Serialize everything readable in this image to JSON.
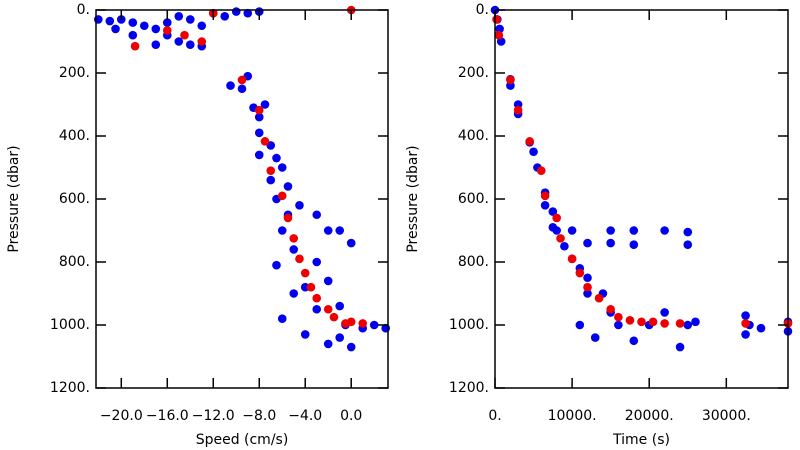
{
  "chart_data": [
    {
      "type": "scatter",
      "xlabel": "Speed (cm/s)",
      "ylabel": "Pressure (dbar)",
      "xlim": [
        -22.2,
        3.2
      ],
      "ylim": [
        1200,
        0
      ],
      "xticks": [
        {
          "value": -20,
          "label": "−20.0"
        },
        {
          "value": -16,
          "label": "−16.0"
        },
        {
          "value": -12,
          "label": "−12.0"
        },
        {
          "value": -8,
          "label": "−8.0"
        },
        {
          "value": -4,
          "label": "−4.0"
        },
        {
          "value": 0,
          "label": "0.0"
        }
      ],
      "yticks": [
        {
          "value": 0,
          "label": "0."
        },
        {
          "value": 200,
          "label": "200."
        },
        {
          "value": 400,
          "label": "400."
        },
        {
          "value": 600,
          "label": "600."
        },
        {
          "value": 800,
          "label": "800."
        },
        {
          "value": 1000,
          "label": "1000."
        },
        {
          "value": 1200,
          "label": "1200."
        }
      ],
      "series": [
        {
          "color": "#0000ee",
          "x": [
            -22,
            -21,
            -20,
            -19,
            -18,
            -17,
            -16,
            -15,
            -14,
            -13,
            -17,
            -19,
            -20.5,
            -16,
            -14,
            -12,
            -10,
            -11,
            -13,
            -15,
            -9,
            -8,
            -10.5,
            -9,
            -9.5,
            -8.5,
            -7.5,
            -8,
            -8,
            -7,
            -6.5,
            -8,
            -7,
            -6,
            -6.5,
            -5.5,
            -5.5,
            -6,
            -4.5,
            -3,
            -2,
            -1,
            0,
            -5,
            -3,
            -6.5,
            -4,
            -2,
            -5,
            -3,
            -1,
            -4,
            -2,
            0,
            1,
            2,
            3,
            -6,
            -1,
            -0.5
          ],
          "values": [
            30,
            35,
            30,
            40,
            50,
            60,
            80,
            100,
            110,
            115,
            110,
            80,
            60,
            40,
            30,
            10,
            5,
            20,
            50,
            20,
            10,
            5,
            240,
            210,
            250,
            310,
            300,
            340,
            390,
            430,
            470,
            460,
            540,
            500,
            600,
            560,
            650,
            700,
            620,
            650,
            700,
            700,
            740,
            760,
            800,
            810,
            880,
            860,
            900,
            950,
            940,
            1030,
            1060,
            1070,
            1010,
            1000,
            1010,
            980,
            1040,
            1000
          ]
        },
        {
          "color": "#ee0000",
          "x": [
            -18.8,
            -16,
            -14.5,
            -13,
            -12,
            0,
            -9.5,
            -8,
            -7.5,
            -7,
            -6,
            -5.5,
            -5,
            -4.5,
            -4,
            -3.5,
            -3,
            -2,
            -1.5,
            -0.5,
            0,
            1
          ],
          "values": [
            115,
            65,
            80,
            100,
            10,
            0,
            222,
            318,
            417,
            510,
            590,
            660,
            725,
            790,
            835,
            880,
            915,
            950,
            975,
            995,
            990,
            995
          ]
        }
      ]
    },
    {
      "type": "scatter",
      "xlabel": "Time (s)",
      "ylabel": "Pressure (dbar)",
      "xlim": [
        0,
        38000
      ],
      "ylim": [
        1200,
        0
      ],
      "xticks": [
        {
          "value": 0,
          "label": "0."
        },
        {
          "value": 10000,
          "label": "10000."
        },
        {
          "value": 20000,
          "label": "20000."
        },
        {
          "value": 30000,
          "label": "30000."
        }
      ],
      "yticks": [
        {
          "value": 0,
          "label": "0."
        },
        {
          "value": 200,
          "label": "200."
        },
        {
          "value": 400,
          "label": "400."
        },
        {
          "value": 600,
          "label": "600."
        },
        {
          "value": 800,
          "label": "800."
        },
        {
          "value": 1000,
          "label": "1000."
        },
        {
          "value": 1200,
          "label": "1200."
        }
      ],
      "series": [
        {
          "color": "#0000ee",
          "x": [
            0,
            300,
            600,
            800,
            2000,
            2000,
            3000,
            3000,
            4500,
            5000,
            5500,
            6500,
            6500,
            7500,
            8000,
            7500,
            9000,
            10000,
            11000,
            12000,
            12000,
            10000,
            12000,
            15000,
            15000,
            18000,
            18000,
            22000,
            25000,
            25000,
            14000,
            15000,
            16000,
            18000,
            20000,
            22000,
            24000,
            25000,
            26000,
            32500,
            32500,
            33000,
            34500,
            38000,
            38000,
            11000,
            13000
          ],
          "values": [
            0,
            30,
            60,
            100,
            220,
            240,
            300,
            330,
            420,
            450,
            500,
            580,
            620,
            640,
            700,
            690,
            750,
            790,
            820,
            850,
            900,
            700,
            740,
            700,
            740,
            700,
            745,
            700,
            705,
            745,
            900,
            960,
            1000,
            1050,
            1000,
            960,
            1070,
            1000,
            990,
            970,
            1030,
            1000,
            1010,
            990,
            1020,
            1000,
            1040
          ]
        },
        {
          "color": "#ee0000",
          "x": [
            200,
            500,
            2000,
            3000,
            4500,
            6000,
            6500,
            8000,
            8500,
            10000,
            11000,
            12000,
            13500,
            15000,
            16000,
            17500,
            19000,
            20500,
            22000,
            24000,
            32500,
            38000
          ],
          "values": [
            30,
            80,
            222,
            318,
            417,
            510,
            590,
            660,
            725,
            790,
            835,
            880,
            915,
            950,
            975,
            985,
            990,
            990,
            995,
            995,
            995,
            995
          ]
        }
      ]
    }
  ]
}
